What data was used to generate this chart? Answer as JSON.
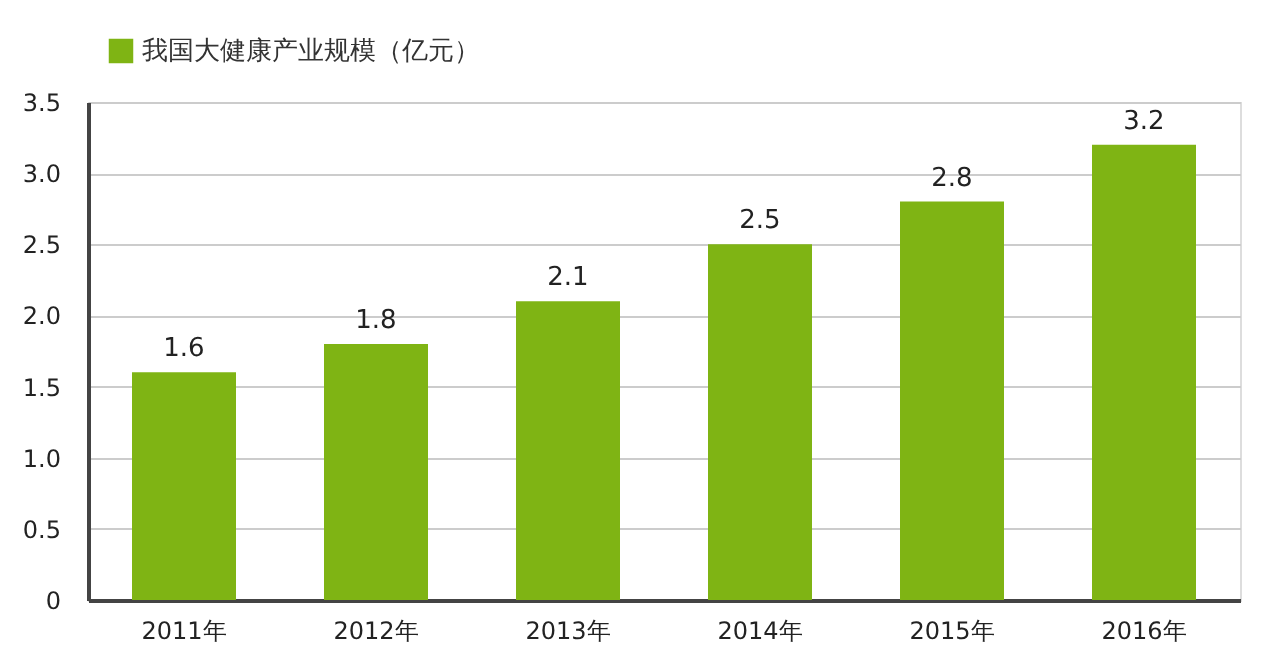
{
  "chart_data": {
    "type": "bar",
    "categories": [
      "2011年",
      "2012年",
      "2013年",
      "2014年",
      "2015年",
      "2016年"
    ],
    "series": [
      {
        "name": "我国大健康产业规模（亿元）",
        "color": "#7fb414",
        "values": [
          1.6,
          1.8,
          2.1,
          2.5,
          2.8,
          3.2
        ]
      }
    ],
    "ylim": [
      0,
      3.5
    ],
    "yticks": [
      0,
      0.5,
      {
        "value": 1,
        "label": "1.0"
      },
      1.5,
      {
        "value": 2,
        "label": "2.0"
      },
      2.5,
      {
        "value": 3,
        "label": "3.0"
      },
      3.5
    ],
    "grid": "y",
    "legend": "top left",
    "data_labels": true
  }
}
